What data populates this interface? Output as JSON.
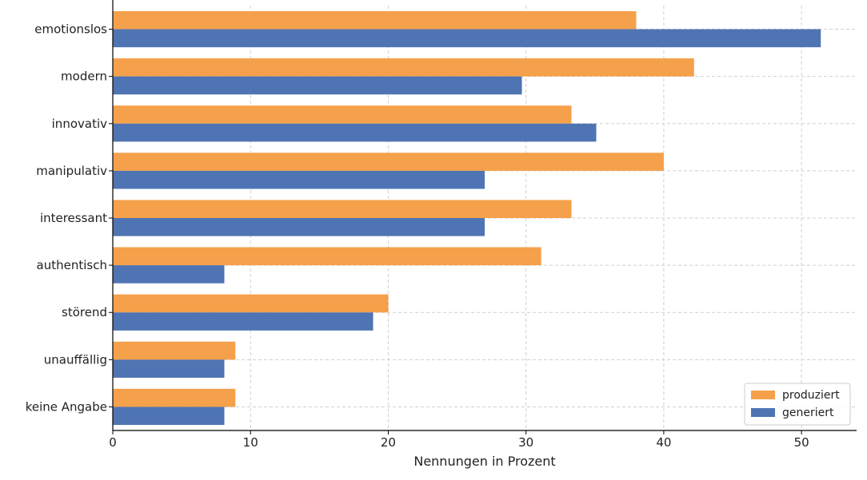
{
  "chart_data": {
    "type": "bar",
    "orientation": "horizontal",
    "categories": [
      "emotionslos",
      "modern",
      "innovativ",
      "manipulativ",
      "interessant",
      "authentisch",
      "störend",
      "unauffällig",
      "keine Angabe"
    ],
    "series": [
      {
        "name": "produziert",
        "color": "#f5a04a",
        "values": [
          38.0,
          42.2,
          33.3,
          40.0,
          33.3,
          31.1,
          20.0,
          8.9,
          8.9
        ]
      },
      {
        "name": "generiert",
        "color": "#4f74b3",
        "values": [
          51.4,
          29.7,
          35.1,
          27.0,
          27.0,
          8.1,
          18.9,
          8.1,
          8.1
        ]
      }
    ],
    "xlabel": "Nennungen in Prozent",
    "ylabel": "",
    "xlim": [
      0,
      54
    ],
    "xticks": [
      0,
      10,
      20,
      30,
      40,
      50
    ],
    "grid": true,
    "legend_position": "lower-right"
  }
}
